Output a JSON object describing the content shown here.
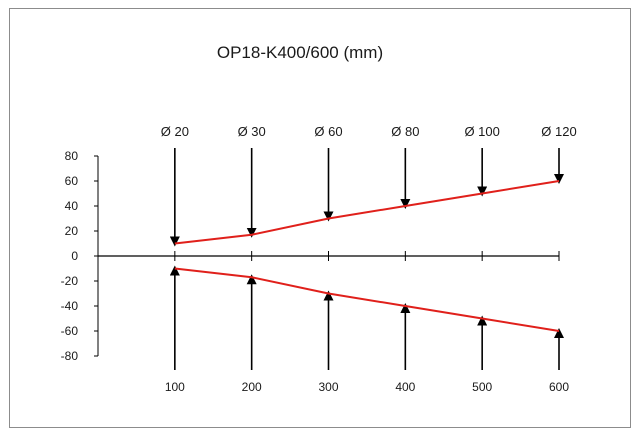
{
  "chart_data": {
    "type": "line",
    "title": "OP18-K400/600 (mm)",
    "xlabel": "",
    "ylabel": "",
    "x": [
      100,
      200,
      300,
      400,
      500,
      600
    ],
    "xlim": [
      0,
      600
    ],
    "ylim": [
      -80,
      80
    ],
    "y_ticks": [
      80,
      60,
      40,
      20,
      0,
      -20,
      -40,
      -60,
      -80
    ],
    "x_tick_labels": [
      "100",
      "200",
      "300",
      "400",
      "500",
      "600"
    ],
    "diameter_labels": [
      "Ø 20",
      "Ø 30",
      "Ø 60",
      "Ø 80",
      "Ø 100",
      "Ø 120"
    ],
    "series": [
      {
        "values": [
          10,
          17,
          30,
          40,
          50,
          60
        ],
        "color": "#e0201b"
      },
      {
        "values": [
          -10,
          -17,
          -30,
          -40,
          -50,
          -60
        ],
        "color": "#e0201b"
      }
    ],
    "grid": false,
    "legend": "none",
    "arrows": {
      "color": "#000000",
      "from_above_to_curve": true,
      "from_below_to_curve": true
    }
  }
}
